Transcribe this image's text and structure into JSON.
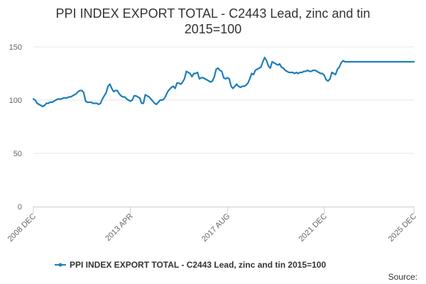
{
  "chart_data": {
    "type": "line",
    "title_lines": [
      "PPI INDEX EXPORT TOTAL - C2443 Lead, zinc and tin",
      "2015=100"
    ],
    "xlabel": "",
    "ylabel": "",
    "ylim": [
      0,
      150
    ],
    "y_ticks": [
      0,
      50,
      100,
      150
    ],
    "x_ticks": [
      {
        "label": "2008 DEC",
        "t": 0
      },
      {
        "label": "2013 APR",
        "t": 52
      },
      {
        "label": "2017 AUG",
        "t": 104
      },
      {
        "label": "2021 DEC",
        "t": 156
      },
      {
        "label": "2025 DEC",
        "t": 204
      }
    ],
    "grid": true,
    "legend_position": "bottom",
    "series": [
      {
        "name": "PPI INDEX EXPORT TOTAL - C2443 Lead, zinc and tin 2015=100",
        "color": "#1f7fba",
        "x": [
          0,
          1,
          2,
          3,
          4,
          5,
          6,
          7,
          8,
          9,
          10,
          11,
          12,
          13,
          14,
          15,
          16,
          17,
          18,
          19,
          20,
          21,
          22,
          23,
          24,
          25,
          26,
          27,
          28,
          29,
          30,
          31,
          32,
          33,
          34,
          35,
          36,
          37,
          38,
          39,
          40,
          41,
          42,
          43,
          44,
          45,
          46,
          47,
          48,
          49,
          50,
          51,
          52,
          53,
          54,
          55,
          56,
          57,
          58,
          59,
          60,
          61,
          62,
          63,
          64,
          65,
          66,
          67,
          68,
          69,
          70,
          71,
          72,
          73,
          74,
          75,
          76,
          77,
          78,
          79,
          80,
          81,
          82,
          83,
          84,
          85,
          86,
          87,
          88,
          89,
          90,
          91,
          92,
          93,
          94,
          95,
          96,
          97,
          98,
          99,
          100,
          101,
          102,
          103,
          104,
          105,
          106,
          107,
          108,
          109,
          110,
          111,
          112,
          113,
          114,
          115,
          116,
          117,
          118,
          119,
          120,
          121,
          122,
          123,
          124,
          125,
          126,
          127,
          128,
          129,
          130,
          131,
          132,
          133,
          134,
          135,
          136,
          137,
          138,
          139,
          140,
          141,
          142,
          143,
          144,
          145,
          146,
          147,
          148,
          149,
          150,
          151,
          152,
          153,
          154,
          155,
          156,
          157,
          158,
          159,
          160,
          161,
          162,
          163,
          164,
          165,
          166,
          167,
          168,
          169,
          170,
          171,
          172,
          173,
          174,
          175,
          176,
          177,
          178,
          179,
          180,
          181,
          182,
          183,
          184,
          185,
          186,
          187,
          188,
          189,
          190,
          191,
          192,
          193,
          194,
          195,
          196,
          197,
          198,
          199,
          200,
          201,
          202,
          203,
          204
        ],
        "values": [
          101,
          100,
          97,
          96,
          95,
          94,
          95,
          97,
          97,
          98,
          98,
          99,
          100,
          101,
          101,
          101,
          102,
          102,
          102,
          103,
          103,
          104,
          105,
          106,
          108,
          109,
          109,
          107,
          99,
          98,
          98,
          98,
          97,
          97,
          97,
          96,
          97,
          101,
          104,
          107,
          113,
          115,
          111,
          108,
          109,
          109,
          106,
          104,
          103,
          103,
          101,
          100,
          99,
          100,
          104,
          104,
          103,
          102,
          97,
          97,
          105,
          104,
          103,
          101,
          99,
          97,
          96,
          98,
          100,
          100,
          101,
          104,
          108,
          110,
          112,
          113,
          111,
          116,
          116,
          115,
          117,
          120,
          127,
          126,
          125,
          122,
          125,
          125,
          126,
          120,
          121,
          121,
          120,
          119,
          118,
          117,
          118,
          122,
          129,
          130,
          128,
          127,
          121,
          120,
          121,
          120,
          113,
          111,
          113,
          115,
          113,
          112,
          113,
          113,
          114,
          116,
          120,
          125,
          124,
          128,
          129,
          130,
          131,
          136,
          140,
          137,
          132,
          130,
          136,
          135,
          134,
          133,
          134,
          131,
          130,
          128,
          127,
          126,
          126,
          126,
          125,
          126,
          125,
          126,
          126,
          127,
          127,
          128,
          127,
          127,
          128,
          128,
          127,
          126,
          125,
          125,
          123,
          119,
          118,
          120,
          126,
          125,
          124,
          129,
          131,
          135,
          137,
          136,
          136,
          136,
          136,
          136,
          136,
          136,
          136,
          136,
          136,
          136,
          136,
          136,
          136,
          136,
          136,
          136,
          136,
          136,
          136,
          136,
          136,
          136,
          136,
          136,
          136,
          136,
          136,
          136,
          136,
          136,
          136,
          136,
          136,
          136,
          136,
          136,
          136
        ]
      }
    ]
  },
  "source_label": "Source:",
  "colors": {
    "line": "#1f7fba",
    "grid": "#e6e6e6",
    "axis": "#cccccc"
  }
}
